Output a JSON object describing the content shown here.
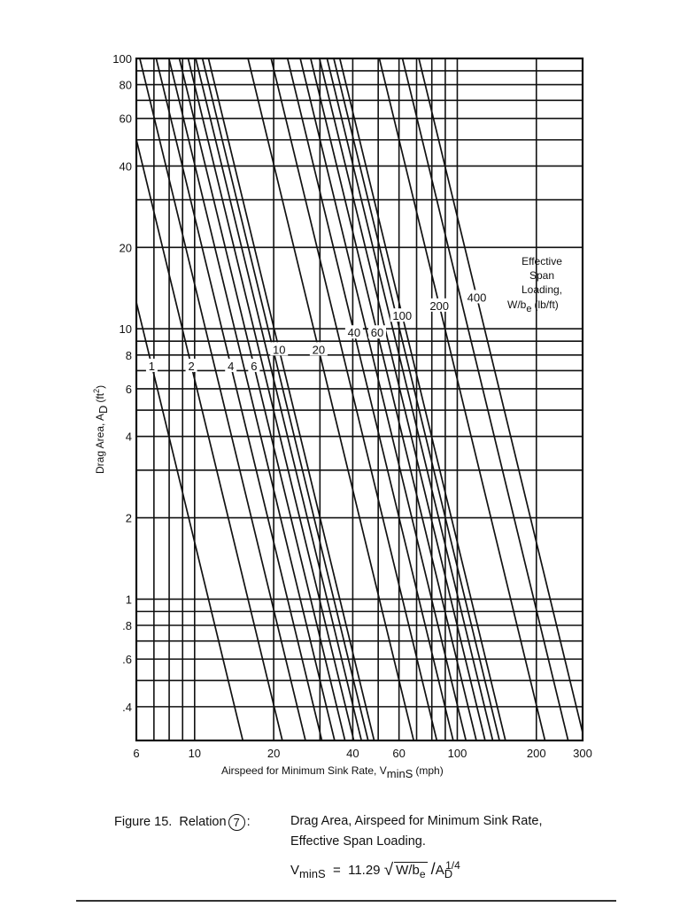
{
  "chart_data": {
    "type": "line",
    "xscale": "log",
    "yscale": "log",
    "xlim": [
      6,
      300
    ],
    "ylim": [
      0.3,
      100
    ],
    "xlabel_main": "Airspeed for Minimum Sink Rate, V",
    "xlabel_sub": "minS",
    "xlabel_unit": "(mph)",
    "ylabel_main": "Drag Area, A",
    "ylabel_sub": "D",
    "ylabel_unit": "(ft",
    "ylabel_sup": "2",
    "ylabel_close": ")",
    "x_ticks": [
      {
        "value": 6,
        "label": "6"
      },
      {
        "value": 10,
        "label": "10"
      },
      {
        "value": 20,
        "label": "20"
      },
      {
        "value": 40,
        "label": "40"
      },
      {
        "value": 60,
        "label": "60"
      },
      {
        "value": 100,
        "label": "100"
      },
      {
        "value": 200,
        "label": "200"
      },
      {
        "value": 300,
        "label": "300"
      }
    ],
    "y_ticks": [
      {
        "value": 0.4,
        "label": ".4"
      },
      {
        "value": 0.6,
        "label": ".6"
      },
      {
        "value": 0.8,
        "label": ".8"
      },
      {
        "value": 1,
        "label": "1"
      },
      {
        "value": 2,
        "label": "2"
      },
      {
        "value": 4,
        "label": "4"
      },
      {
        "value": 6,
        "label": "6"
      },
      {
        "value": 8,
        "label": "8"
      },
      {
        "value": 10,
        "label": "10"
      },
      {
        "value": 20,
        "label": "20"
      },
      {
        "value": 40,
        "label": "40"
      },
      {
        "value": 60,
        "label": "60"
      },
      {
        "value": 80,
        "label": "80"
      },
      {
        "value": 100,
        "label": "100"
      }
    ],
    "x_grid": [
      7,
      8,
      9,
      10,
      20,
      30,
      40,
      50,
      60,
      70,
      80,
      90,
      100,
      200,
      300
    ],
    "y_grid": [
      0.4,
      0.5,
      0.6,
      0.7,
      0.8,
      0.9,
      1,
      2,
      3,
      4,
      5,
      6,
      7,
      8,
      9,
      10,
      20,
      30,
      40,
      50,
      60,
      70,
      80,
      90,
      100
    ],
    "formula_constant": 11.29,
    "series_values": [
      1,
      2,
      3,
      4,
      5,
      6,
      7,
      8,
      9,
      10,
      20,
      30,
      40,
      50,
      60,
      70,
      80,
      90,
      100,
      200,
      300,
      400
    ],
    "series_labels": [
      {
        "value": 1,
        "label": "1"
      },
      {
        "value": 2,
        "label": "2"
      },
      {
        "value": 4,
        "label": "4"
      },
      {
        "value": 6,
        "label": "6"
      },
      {
        "value": 10,
        "label": "10"
      },
      {
        "value": 20,
        "label": "20"
      },
      {
        "value": 40,
        "label": "40"
      },
      {
        "value": 60,
        "label": "60"
      },
      {
        "value": 100,
        "label": "100"
      },
      {
        "value": 200,
        "label": "200"
      },
      {
        "value": 400,
        "label": "400"
      }
    ],
    "legend_title": [
      "Effective",
      "Span",
      "Loading,"
    ],
    "legend_unit_main": "W/b",
    "legend_unit_sub": "e",
    "legend_unit_rest": "(lb/ft)"
  },
  "caption": {
    "figure": "Figure 15.",
    "relation": "Relation",
    "relation_number": "7",
    "colon": ":",
    "line1": "Drag Area, Airspeed for Minimum Sink Rate,",
    "line2": "Effective Span Loading.",
    "formula_lhs": "V",
    "formula_lhs_sub": "minS",
    "formula_eq": "=",
    "formula_const": "11.29",
    "formula_rad_main": "W/b",
    "formula_rad_sub": "e",
    "formula_div": "/",
    "formula_a": "A",
    "formula_a_sub": "D",
    "formula_a_sup": "1/4"
  }
}
